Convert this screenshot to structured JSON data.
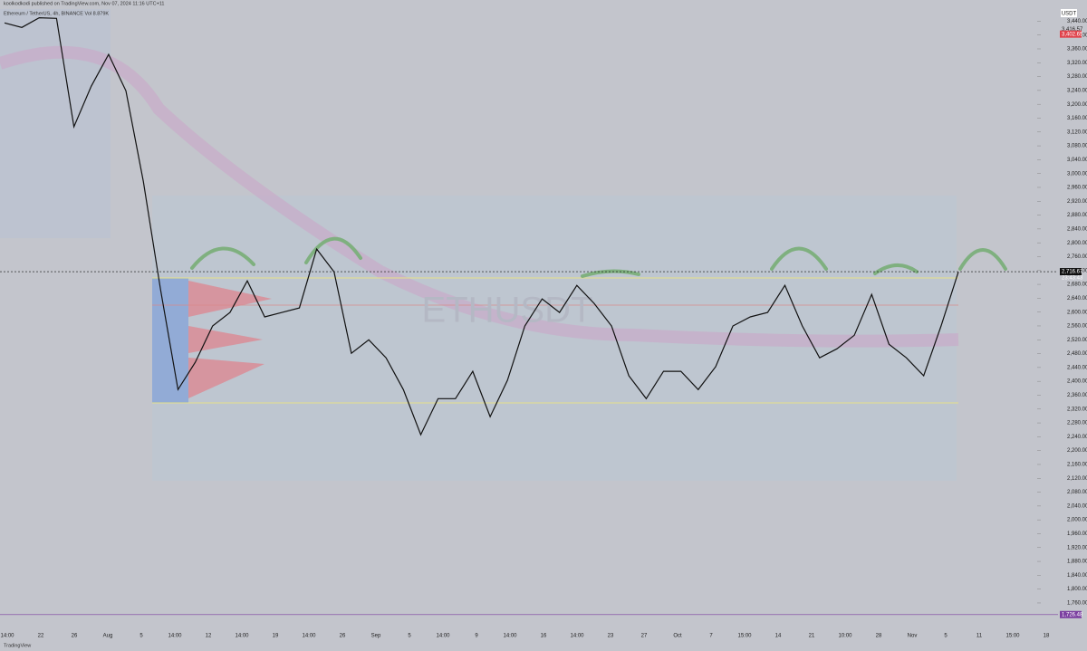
{
  "chart_data": {
    "type": "line",
    "header": "koolkodkodi published on TradingView.com, Nov 07, 2024 11:16 UTC+11",
    "symbol": "Ethereum / TetherUS, 4h, BINANCE  Vol 8.879K",
    "watermark": "ETHUSDT",
    "footer": "TradingView",
    "currency": "USDT",
    "countdown": "23:43:43",
    "series": [
      {
        "name": "ETHUSDT",
        "color": "#111111",
        "values": [
          3435,
          3422,
          3450,
          3448,
          3135,
          3252,
          3344,
          3239,
          2978,
          2664,
          2376,
          2455,
          2560,
          2599,
          2690,
          2586,
          2599,
          2612,
          2782,
          2716,
          2481,
          2520,
          2468,
          2376,
          2246,
          2350,
          2350,
          2429,
          2298,
          2403,
          2560,
          2638,
          2599,
          2677,
          2625,
          2560,
          2416,
          2350,
          2429,
          2429,
          2376,
          2442,
          2560,
          2586,
          2599,
          2677,
          2560,
          2468,
          2494,
          2533,
          2651,
          2507,
          2468,
          2416,
          2560,
          2716
        ]
      }
    ],
    "ylim": [
      1671,
      3475
    ],
    "yticks": [
      {
        "value": 3440,
        "label": "3,440.00"
      },
      {
        "value": 3400,
        "label": "3,400.00"
      },
      {
        "value": 3360,
        "label": "3,360.00"
      },
      {
        "value": 3320,
        "label": "3,320.00"
      },
      {
        "value": 3280,
        "label": "3,280.00"
      },
      {
        "value": 3240,
        "label": "3,240.00"
      },
      {
        "value": 3200,
        "label": "3,200.00"
      },
      {
        "value": 3160,
        "label": "3,160.00"
      },
      {
        "value": 3120,
        "label": "3,120.00"
      },
      {
        "value": 3080,
        "label": "3,080.00"
      },
      {
        "value": 3040,
        "label": "3,040.00"
      },
      {
        "value": 3000,
        "label": "3,000.00"
      },
      {
        "value": 2960,
        "label": "2,960.00"
      },
      {
        "value": 2920,
        "label": "2,920.00"
      },
      {
        "value": 2880,
        "label": "2,880.00"
      },
      {
        "value": 2840,
        "label": "2,840.00"
      },
      {
        "value": 2800,
        "label": "2,800.00"
      },
      {
        "value": 2760,
        "label": "2,760.00"
      },
      {
        "value": 2720,
        "label": "2,720.00"
      },
      {
        "value": 2680,
        "label": "2,680.00"
      },
      {
        "value": 2640,
        "label": "2,640.00"
      },
      {
        "value": 2600,
        "label": "2,600.00"
      },
      {
        "value": 2560,
        "label": "2,560.00"
      },
      {
        "value": 2520,
        "label": "2,520.00"
      },
      {
        "value": 2480,
        "label": "2,480.00"
      },
      {
        "value": 2440,
        "label": "2,440.00"
      },
      {
        "value": 2400,
        "label": "2,400.00"
      },
      {
        "value": 2360,
        "label": "2,360.00"
      },
      {
        "value": 2320,
        "label": "2,320.00"
      },
      {
        "value": 2280,
        "label": "2,280.00"
      },
      {
        "value": 2240,
        "label": "2,240.00"
      },
      {
        "value": 2200,
        "label": "2,200.00"
      },
      {
        "value": 2160,
        "label": "2,160.00"
      },
      {
        "value": 2120,
        "label": "2,120.00"
      },
      {
        "value": 2080,
        "label": "2,080.00"
      },
      {
        "value": 2040,
        "label": "2,040.00"
      },
      {
        "value": 2000,
        "label": "2,000.00"
      },
      {
        "value": 1960,
        "label": "1,960.00"
      },
      {
        "value": 1920,
        "label": "1,920.00"
      },
      {
        "value": 1880,
        "label": "1,880.00"
      },
      {
        "value": 1840,
        "label": "1,840.00"
      },
      {
        "value": 1800,
        "label": "1,800.00"
      },
      {
        "value": 1760,
        "label": "1,760.00"
      }
    ],
    "price_labels": [
      {
        "value": 2716.67,
        "label": "2,716.67",
        "color": "#111111"
      },
      {
        "value": 1726.48,
        "label": "1,726.48",
        "color": "#7b3fa0"
      },
      {
        "value": 3416.57,
        "label": "3,416.57",
        "color": "#c3c5cc"
      },
      {
        "value": 3402.65,
        "label": "3,402.65",
        "color": "#e0424b"
      }
    ],
    "xtick_labels": [
      "14:00",
      "22",
      "26",
      "Aug",
      "5",
      "14:00",
      "12",
      "14:00",
      "19",
      "14:00",
      "26",
      "Sep",
      "5",
      "14:00",
      "9",
      "14:00",
      "16",
      "14:00",
      "23",
      "27",
      "Oct",
      "7",
      "15:00",
      "14",
      "21",
      "10:00",
      "28",
      "Nov",
      "5",
      "11",
      "15:00",
      "18"
    ]
  }
}
